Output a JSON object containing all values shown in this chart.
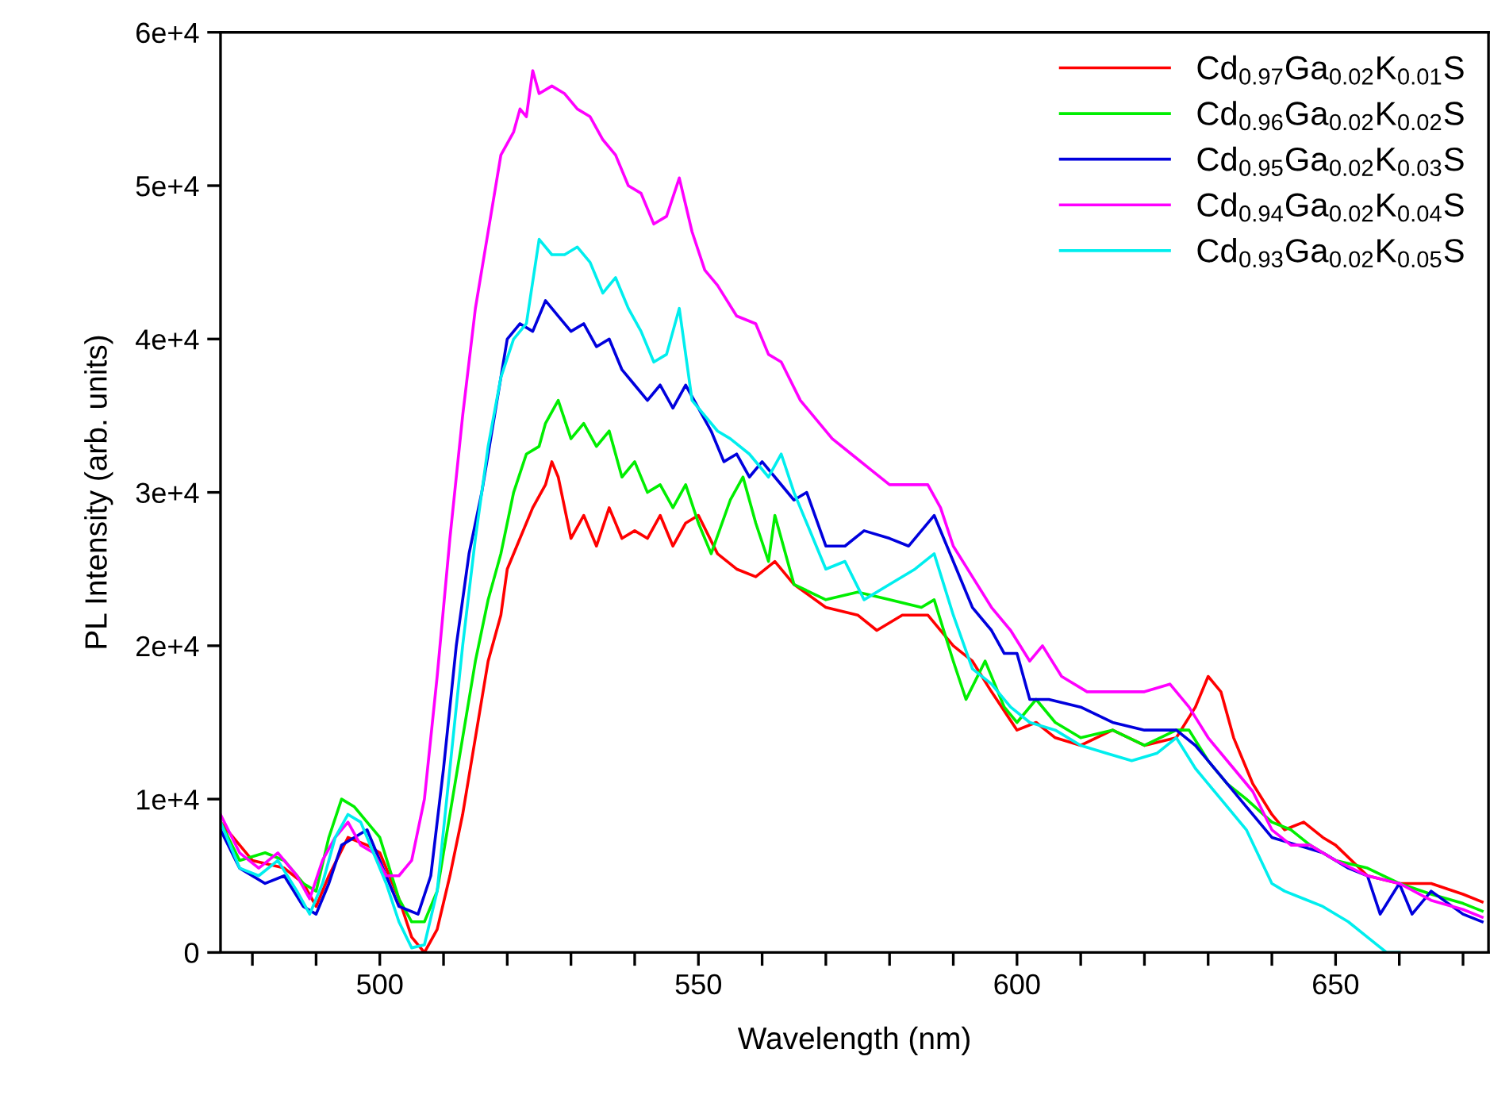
{
  "chart_data": {
    "type": "line",
    "xlabel": "Wavelength (nm)",
    "ylabel": "PL Intensity (arb. units)",
    "xlim": [
      475,
      674
    ],
    "ylim": [
      0,
      60000
    ],
    "xticks": [
      {
        "value": 480,
        "label": null
      },
      {
        "value": 490,
        "label": null
      },
      500,
      {
        "value": 510,
        "label": null
      },
      {
        "value": 520,
        "label": null
      },
      {
        "value": 530,
        "label": null
      },
      {
        "value": 540,
        "label": null
      },
      550,
      {
        "value": 560,
        "label": null
      },
      {
        "value": 570,
        "label": null
      },
      {
        "value": 580,
        "label": null
      },
      {
        "value": 590,
        "label": null
      },
      600,
      {
        "value": 610,
        "label": null
      },
      {
        "value": 620,
        "label": null
      },
      {
        "value": 630,
        "label": null
      },
      {
        "value": 640,
        "label": null
      },
      650,
      {
        "value": 660,
        "label": null
      },
      {
        "value": 670,
        "label": null
      }
    ],
    "yticks": [
      0,
      {
        "value": 10000,
        "label": "1e+4"
      },
      {
        "value": 20000,
        "label": "2e+4"
      },
      {
        "value": 30000,
        "label": "3e+4"
      },
      {
        "value": 40000,
        "label": "4e+4"
      },
      {
        "value": 50000,
        "label": "5e+4"
      },
      {
        "value": 60000,
        "label": "6e+4"
      }
    ],
    "grid": false,
    "legend": "top right",
    "marker": "none",
    "line_style": "solid",
    "series": [
      {
        "name": "Cd$_{0.97}$Ga$_{0.02}$K$_{0.01}$S",
        "color": "#ff0000",
        "x": [
          475,
          480,
          485,
          488,
          490,
          492,
          495,
          498,
          500,
          503,
          505,
          507,
          509,
          511,
          513,
          515,
          517,
          519,
          520,
          522,
          524,
          526,
          527,
          528,
          530,
          532,
          534,
          536,
          538,
          540,
          542,
          544,
          546,
          548,
          550,
          553,
          556,
          559,
          562,
          565,
          570,
          575,
          578,
          582,
          586,
          590,
          593,
          596,
          600,
          603,
          606,
          610,
          615,
          620,
          625,
          628,
          630,
          632,
          634,
          637,
          640,
          642,
          645,
          648,
          650,
          655,
          660,
          665,
          670,
          673
        ],
        "values": [
          8500,
          6000,
          5500,
          4500,
          3000,
          5000,
          7500,
          7000,
          6500,
          3500,
          1000,
          0,
          1500,
          5000,
          9000,
          14000,
          19000,
          22000,
          25000,
          27000,
          29000,
          30500,
          32000,
          31000,
          27000,
          28500,
          26500,
          29000,
          27000,
          27500,
          27000,
          28500,
          26500,
          28000,
          28500,
          26000,
          25000,
          24500,
          25500,
          24000,
          22500,
          22000,
          21000,
          22000,
          22000,
          20000,
          19000,
          17000,
          14500,
          15000,
          14000,
          13500,
          14500,
          13500,
          14000,
          16000,
          18000,
          17000,
          14000,
          11000,
          9000,
          8000,
          8500,
          7500,
          7000,
          5000,
          4500,
          4500,
          3800,
          3300
        ]
      },
      {
        "name": "Cd$_{0.96}$Ga$_{0.02}$K$_{0.02}$S",
        "color": "#00ee00",
        "x": [
          475,
          478,
          482,
          485,
          488,
          490,
          492,
          494,
          496,
          498,
          500,
          503,
          505,
          507,
          509,
          511,
          513,
          515,
          517,
          519,
          521,
          523,
          525,
          526,
          528,
          530,
          532,
          534,
          536,
          538,
          540,
          542,
          544,
          546,
          548,
          550,
          552,
          555,
          557,
          559,
          561,
          562,
          565,
          570,
          575,
          580,
          585,
          587,
          590,
          592,
          595,
          598,
          600,
          603,
          606,
          610,
          615,
          620,
          625,
          627,
          630,
          633,
          636,
          640,
          643,
          646,
          650,
          655,
          660,
          665,
          670,
          673
        ],
        "values": [
          8500,
          6000,
          6500,
          6000,
          4500,
          4000,
          7500,
          10000,
          9500,
          8500,
          7500,
          3500,
          2000,
          2000,
          4000,
          9000,
          14000,
          19000,
          23000,
          26000,
          30000,
          32500,
          33000,
          34500,
          36000,
          33500,
          34500,
          33000,
          34000,
          31000,
          32000,
          30000,
          30500,
          29000,
          30500,
          28000,
          26000,
          29500,
          31000,
          28000,
          25500,
          28500,
          24000,
          23000,
          23500,
          23000,
          22500,
          23000,
          19000,
          16500,
          19000,
          16000,
          15000,
          16500,
          15000,
          14000,
          14500,
          13500,
          14500,
          14500,
          12500,
          11000,
          10000,
          8500,
          8000,
          7000,
          6000,
          5500,
          4500,
          3800,
          3200,
          2700
        ]
      },
      {
        "name": "Cd$_{0.95}$Ga$_{0.02}$K$_{0.03}$S",
        "color": "#0000dd",
        "x": [
          475,
          478,
          482,
          485,
          488,
          490,
          492,
          494,
          496,
          498,
          500,
          503,
          506,
          508,
          510,
          512,
          514,
          516,
          518,
          520,
          522,
          524,
          526,
          528,
          530,
          532,
          534,
          536,
          538,
          540,
          542,
          544,
          546,
          548,
          550,
          552,
          554,
          556,
          558,
          560,
          562,
          565,
          567,
          570,
          573,
          576,
          580,
          583,
          585,
          587,
          590,
          593,
          596,
          598,
          600,
          602,
          605,
          610,
          615,
          620,
          625,
          628,
          632,
          636,
          640,
          644,
          648,
          652,
          655,
          657,
          660,
          662,
          665,
          670,
          673
        ],
        "values": [
          8000,
          5500,
          4500,
          5000,
          3000,
          2500,
          4500,
          7000,
          7500,
          8000,
          6000,
          3000,
          2500,
          5000,
          12000,
          20000,
          26000,
          30000,
          35000,
          40000,
          41000,
          40500,
          42500,
          41500,
          40500,
          41000,
          39500,
          40000,
          38000,
          37000,
          36000,
          37000,
          35500,
          37000,
          35500,
          34000,
          32000,
          32500,
          31000,
          32000,
          31000,
          29500,
          30000,
          26500,
          26500,
          27500,
          27000,
          26500,
          27500,
          28500,
          25500,
          22500,
          21000,
          19500,
          19500,
          16500,
          16500,
          16000,
          15000,
          14500,
          14500,
          13500,
          11500,
          9500,
          7500,
          7000,
          6500,
          5500,
          5000,
          2500,
          4500,
          2500,
          4000,
          2500,
          2000
        ]
      },
      {
        "name": "Cd$_{0.94}$Ga$_{0.02}$K$_{0.04}$S",
        "color": "#ff00ff",
        "x": [
          475,
          478,
          481,
          484,
          487,
          489,
          491,
          493,
          495,
          497,
          499,
          501,
          503,
          505,
          507,
          509,
          511,
          513,
          515,
          517,
          519,
          521,
          522,
          523,
          524,
          525,
          527,
          529,
          531,
          533,
          535,
          537,
          539,
          541,
          543,
          545,
          547,
          549,
          551,
          553,
          556,
          559,
          561,
          563,
          566,
          568,
          571,
          574,
          577,
          580,
          583,
          586,
          588,
          590,
          593,
          596,
          599,
          602,
          604,
          607,
          611,
          615,
          620,
          624,
          627,
          630,
          634,
          637,
          640,
          643,
          646,
          650,
          655,
          660,
          665,
          670,
          673
        ],
        "values": [
          9000,
          6500,
          5500,
          6500,
          5000,
          3500,
          6000,
          7500,
          8500,
          7000,
          6500,
          5000,
          5000,
          6000,
          10000,
          18000,
          27000,
          35000,
          42000,
          47000,
          52000,
          53500,
          55000,
          54500,
          57500,
          56000,
          56500,
          56000,
          55000,
          54500,
          53000,
          52000,
          50000,
          49500,
          47500,
          48000,
          50500,
          47000,
          44500,
          43500,
          41500,
          41000,
          39000,
          38500,
          36000,
          35000,
          33500,
          32500,
          31500,
          30500,
          30500,
          30500,
          29000,
          26500,
          24500,
          22500,
          21000,
          19000,
          20000,
          18000,
          17000,
          17000,
          17000,
          17500,
          16000,
          14000,
          12000,
          10500,
          8000,
          7000,
          7000,
          6000,
          5000,
          4500,
          3400,
          2800,
          2300
        ]
      },
      {
        "name": "Cd$_{0.93}$Ga$_{0.02}$K$_{0.05}$S",
        "color": "#00eeee",
        "x": [
          475,
          478,
          481,
          484,
          487,
          489,
          491,
          493,
          495,
          497,
          499,
          501,
          503,
          505,
          507,
          509,
          511,
          513,
          515,
          517,
          519,
          521,
          523,
          525,
          527,
          529,
          531,
          533,
          535,
          537,
          539,
          541,
          543,
          545,
          547,
          549,
          551,
          553,
          555,
          558,
          561,
          563,
          565,
          567,
          570,
          573,
          576,
          580,
          584,
          587,
          590,
          593,
          596,
          599,
          602,
          606,
          610,
          614,
          618,
          622,
          625,
          628,
          632,
          636,
          640,
          642,
          645,
          648,
          652,
          655,
          658,
          660
        ],
        "values": [
          8500,
          5500,
          5000,
          6000,
          4000,
          2500,
          4500,
          7500,
          9000,
          8500,
          6500,
          4500,
          2000,
          300,
          500,
          4000,
          12000,
          20000,
          27000,
          33000,
          37500,
          40000,
          41000,
          46500,
          45500,
          45500,
          46000,
          45000,
          43000,
          44000,
          42000,
          40500,
          38500,
          39000,
          42000,
          36000,
          35000,
          34000,
          33500,
          32500,
          31000,
          32500,
          30000,
          28000,
          25000,
          25500,
          23000,
          24000,
          25000,
          26000,
          22000,
          18500,
          17500,
          16000,
          15000,
          14500,
          13500,
          13000,
          12500,
          13000,
          14000,
          12000,
          10000,
          8000,
          4500,
          4000,
          3500,
          3000,
          2000,
          1000,
          0,
          0
        ]
      }
    ]
  }
}
